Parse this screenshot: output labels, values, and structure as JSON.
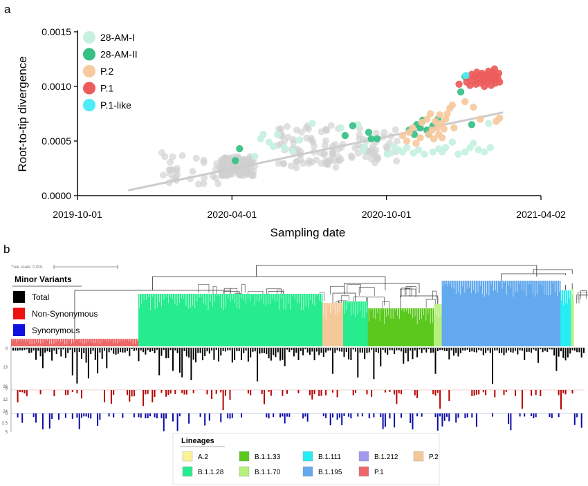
{
  "panel_a": {
    "letter": "a",
    "chart_data": {
      "type": "scatter",
      "xlabel": "Sampling date",
      "ylabel": "Root-to-tip divergence",
      "x_ticks": [
        "2019-10-01",
        "2020-04-01",
        "2020-10-01",
        "2021-04-02"
      ],
      "y_ticks": [
        "0.0000",
        "0.0005",
        "0.0010",
        "0.0015"
      ],
      "xlim": [
        "2019-10-01",
        "2021-04-02"
      ],
      "ylim": [
        0,
        0.0015
      ],
      "legend_position": "top-left",
      "trendline": {
        "x": [
          "2019-12-01",
          "2021-02-15"
        ],
        "y": [
          5e-05,
          0.00076
        ],
        "color": "#cccccc"
      },
      "series": [
        {
          "name": "28-AM-I",
          "color": "#c6f1df",
          "points": [
            [
              "2020-04-28",
              0.00036
            ],
            [
              "2020-05-05",
              0.00052
            ],
            [
              "2020-05-08",
              0.00056
            ],
            [
              "2020-05-15",
              0.00049
            ],
            [
              "2020-05-20",
              0.00045
            ],
            [
              "2020-05-25",
              0.00056
            ],
            [
              "2020-06-02",
              0.00044
            ],
            [
              "2020-06-12",
              0.00041
            ],
            [
              "2020-06-20",
              0.00051
            ],
            [
              "2020-07-05",
              0.00066
            ],
            [
              "2020-08-08",
              0.00062
            ],
            [
              "2020-08-28",
              0.00065
            ],
            [
              "2020-09-03",
              0.00041
            ],
            [
              "2020-09-05",
              0.00045
            ],
            [
              "2020-10-02",
              0.00038
            ],
            [
              "2020-10-06",
              0.00039
            ],
            [
              "2020-10-10",
              0.00045
            ],
            [
              "2020-10-15",
              0.00042
            ],
            [
              "2020-10-20",
              0.0004
            ],
            [
              "2020-10-25",
              0.00044
            ],
            [
              "2020-11-02",
              0.00039
            ],
            [
              "2020-11-08",
              0.00042
            ],
            [
              "2020-11-15",
              0.00038
            ],
            [
              "2020-11-25",
              0.0004
            ],
            [
              "2020-12-02",
              0.00043
            ],
            [
              "2020-12-06",
              0.0004
            ],
            [
              "2020-12-10",
              0.00044
            ],
            [
              "2020-12-18",
              0.00049
            ],
            [
              "2020-12-25",
              0.00038
            ],
            [
              "2021-01-02",
              0.0004
            ],
            [
              "2021-01-08",
              0.00044
            ],
            [
              "2021-01-12",
              0.00048
            ],
            [
              "2021-01-18",
              0.00042
            ],
            [
              "2021-01-25",
              0.0004
            ],
            [
              "2021-02-01",
              0.00044
            ],
            [
              "2021-01-30",
              0.00066
            ]
          ]
        },
        {
          "name": "28-AM-II",
          "color": "#36c084",
          "points": [
            [
              "2020-04-10",
              0.00043
            ],
            [
              "2020-04-05",
              0.00032
            ],
            [
              "2020-08-13",
              0.00055
            ],
            [
              "2020-08-22",
              0.00064
            ],
            [
              "2020-09-10",
              0.00058
            ],
            [
              "2020-09-13",
              0.00052
            ],
            [
              "2020-09-20",
              0.00052
            ],
            [
              "2020-10-28",
              0.0006
            ],
            [
              "2020-11-03",
              0.00056
            ],
            [
              "2020-11-06",
              0.00065
            ],
            [
              "2020-11-10",
              0.00062
            ],
            [
              "2020-11-13",
              0.00069
            ],
            [
              "2020-11-18",
              0.0006
            ],
            [
              "2020-11-20",
              0.00056
            ],
            [
              "2020-11-25",
              0.00064
            ],
            [
              "2020-12-01",
              0.0007
            ],
            [
              "2020-12-28",
              0.00095
            ],
            [
              "2021-01-02",
              0.00109
            ],
            [
              "2021-01-10",
              0.00065
            ]
          ]
        },
        {
          "name": "P.2",
          "color": "#f6c99e",
          "points": [
            [
              "2020-10-20",
              0.00055
            ],
            [
              "2020-10-25",
              0.0005
            ],
            [
              "2020-10-28",
              0.00058
            ],
            [
              "2020-11-01",
              0.00062
            ],
            [
              "2020-11-05",
              0.00048
            ],
            [
              "2020-11-10",
              0.00053
            ],
            [
              "2020-11-12",
              0.00067
            ],
            [
              "2020-11-18",
              0.0007
            ],
            [
              "2020-11-20",
              0.00056
            ],
            [
              "2020-11-22",
              0.00075
            ],
            [
              "2020-11-24",
              0.0006
            ],
            [
              "2020-11-26",
              0.00052
            ],
            [
              "2020-11-28",
              0.00068
            ],
            [
              "2020-11-30",
              0.00062
            ],
            [
              "2020-12-02",
              0.00056
            ],
            [
              "2020-12-03",
              0.00074
            ],
            [
              "2020-12-05",
              0.00066
            ],
            [
              "2020-12-06",
              0.00053
            ],
            [
              "2020-12-08",
              0.00061
            ],
            [
              "2020-12-10",
              0.0007
            ],
            [
              "2020-12-12",
              0.00075
            ],
            [
              "2020-12-15",
              0.0008
            ],
            [
              "2020-12-18",
              0.00083
            ],
            [
              "2020-12-20",
              0.00062
            ],
            [
              "2021-01-02",
              0.00086
            ],
            [
              "2021-01-12",
              0.00081
            ],
            [
              "2021-02-08",
              0.00068
            ],
            [
              "2021-02-12",
              0.00071
            ],
            [
              "2021-01-20",
              0.0007
            ]
          ]
        },
        {
          "name": "P.1",
          "color": "#ed5b5b",
          "points": [
            [
              "2020-12-26",
              0.00102
            ],
            [
              "2021-01-04",
              0.00104
            ],
            [
              "2021-01-06",
              0.00108
            ],
            [
              "2021-01-08",
              0.00101
            ],
            [
              "2021-01-10",
              0.00111
            ],
            [
              "2021-01-12",
              0.00105
            ],
            [
              "2021-01-14",
              0.00109
            ],
            [
              "2021-01-15",
              0.00102
            ],
            [
              "2021-01-16",
              0.00113
            ],
            [
              "2021-01-18",
              0.00107
            ],
            [
              "2021-01-20",
              0.00103
            ],
            [
              "2021-01-21",
              0.0011
            ],
            [
              "2021-01-22",
              0.00112
            ],
            [
              "2021-01-24",
              0.00105
            ],
            [
              "2021-01-25",
              0.001
            ],
            [
              "2021-01-26",
              0.00108
            ],
            [
              "2021-01-28",
              0.00111
            ],
            [
              "2021-01-29",
              0.00104
            ],
            [
              "2021-01-30",
              0.00114
            ],
            [
              "2021-02-01",
              0.00107
            ],
            [
              "2021-02-02",
              0.00101
            ],
            [
              "2021-02-03",
              0.0011
            ],
            [
              "2021-02-04",
              0.00113
            ],
            [
              "2021-02-05",
              0.00106
            ],
            [
              "2021-02-06",
              0.00116
            ],
            [
              "2021-02-07",
              0.00103
            ],
            [
              "2021-02-08",
              0.00109
            ],
            [
              "2021-02-10",
              0.00107
            ],
            [
              "2021-02-11",
              0.00112
            ],
            [
              "2021-02-12",
              0.00104
            ]
          ]
        },
        {
          "name": "P.1-like",
          "color": "#4cecfb",
          "points": [
            [
              "2021-01-03",
              0.0011
            ]
          ]
        }
      ],
      "background_series": {
        "color": "#cfcfcf",
        "count": 260,
        "seed": 7
      }
    }
  },
  "panel_b": {
    "letter": "b",
    "tree_scale_label": "Tree scale: 0.001",
    "minor_variants": {
      "title": "Minor Variants",
      "items": [
        {
          "label": "Total",
          "color": "#000000"
        },
        {
          "label": "Non-Synonymous",
          "color": "#ee1111"
        },
        {
          "label": "Synonymous",
          "color": "#1111dd"
        }
      ]
    },
    "track_ticks": {
      "total": [
        "0",
        "13",
        "26"
      ],
      "nonsyn": [
        "0",
        "12",
        "24"
      ],
      "syn": [
        "0",
        "2.5",
        "5"
      ]
    },
    "lineage_blocks": [
      {
        "lineage": "P.1",
        "color": "#ec6868",
        "fraction": 0.222
      },
      {
        "lineage": "B.1.1.28",
        "color": "#27ec8e",
        "fraction": 0.321
      },
      {
        "lineage": "P.2",
        "color": "#f5c899",
        "fraction": 0.036
      },
      {
        "lineage": "B.1.1.28",
        "color": "#27ec8e",
        "fraction": 0.043
      },
      {
        "lineage": "B.1.1.33",
        "color": "#5bc81e",
        "fraction": 0.115
      },
      {
        "lineage": "B.1.1.70",
        "color": "#b6f07c",
        "fraction": 0.014
      },
      {
        "lineage": "B.1.195",
        "color": "#63a9ee",
        "fraction": 0.207
      },
      {
        "lineage": "B.1.111",
        "color": "#24eef3",
        "fraction": 0.018
      },
      {
        "lineage": "B.1.1.70",
        "color": "#b6f07c",
        "fraction": 0.005
      }
    ],
    "lineages": {
      "title": "Lineages",
      "items": [
        {
          "label": "A.2",
          "color": "#fbf495"
        },
        {
          "label": "B.1.1.33",
          "color": "#5bc81e"
        },
        {
          "label": "B.1.111",
          "color": "#24eef3"
        },
        {
          "label": "B.1.212",
          "color": "#a19af0"
        },
        {
          "label": "P.2",
          "color": "#f5c899"
        },
        {
          "label": "B.1.1.28",
          "color": "#27ec8e"
        },
        {
          "label": "B.1.1.70",
          "color": "#b6f07c"
        },
        {
          "label": "B.1.195",
          "color": "#63a9ee"
        },
        {
          "label": "P.1",
          "color": "#ec6868"
        }
      ]
    }
  }
}
